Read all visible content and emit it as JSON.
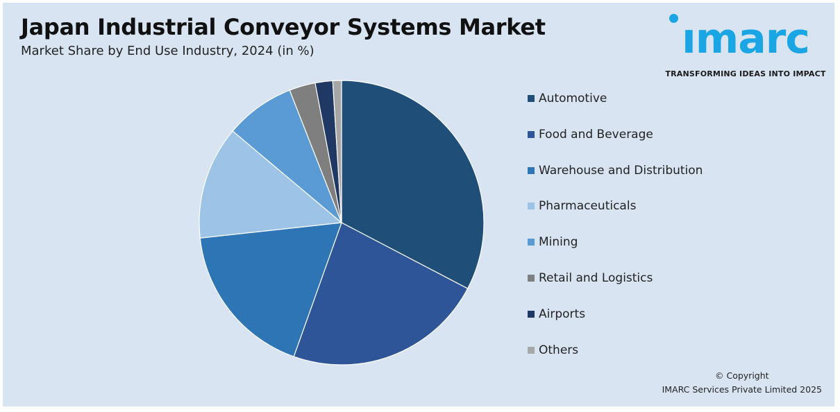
{
  "header": {
    "title": "Japan Industrial Conveyor Systems Market",
    "subtitle": "Market Share by End Use Industry, 2024 (in %)"
  },
  "logo": {
    "word": "ımarc",
    "tagline": "TRANSFORMING IDEAS INTO IMPACT",
    "color": "#1aa6e4"
  },
  "chart_data": {
    "type": "pie",
    "categories": [
      "Automotive",
      "Food and Beverage",
      "Warehouse and Distribution",
      "Pharmaceuticals",
      "Mining",
      "Retail and Logistics",
      "Airports",
      "Others"
    ],
    "values": [
      33,
      23,
      18,
      13,
      8,
      3,
      2,
      1
    ],
    "colors": [
      "#1f4e79",
      "#2e5597",
      "#2e75b6",
      "#9dc3e6",
      "#5b9bd5",
      "#7f7f7f",
      "#203864",
      "#a6a6a6"
    ],
    "legend_position": "right",
    "start": "12 o'clock",
    "direction": "clockwise"
  },
  "footer": {
    "copyright_line1": "© Copyright",
    "copyright_line2": "IMARC Services Private Limited 2025"
  }
}
